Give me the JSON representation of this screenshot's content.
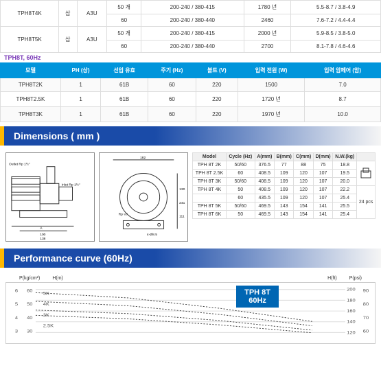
{
  "topSpecs": {
    "rows": [
      {
        "model": "TPH8T4K",
        "ph": "삼",
        "type": "A3U",
        "freq": "50 개",
        "volt": "200-240 / 380-415",
        "rpm": "1780 년",
        "amp": "5.5-8.7 / 3.8-4.9"
      },
      {
        "model": "",
        "ph": "",
        "type": "",
        "freq": "60",
        "volt": "200-240 / 380-440",
        "rpm": "2460",
        "amp": "7.6-7.2 / 4.4-4.4"
      },
      {
        "model": "TPH8T5K",
        "ph": "삼",
        "type": "A3U",
        "freq": "50 개",
        "volt": "200-240 / 380-415",
        "rpm": "2000 년",
        "amp": "5.9-8.5 / 3.8-5.0"
      },
      {
        "model": "",
        "ph": "",
        "type": "",
        "freq": "60",
        "volt": "200-240 / 380-440",
        "rpm": "2700",
        "amp": "8.1-7.8 / 4.6-4.6"
      }
    ]
  },
  "sectionLabel": "TPH8T, 60Hz",
  "specHeaders": [
    "모델",
    "PH (상)",
    "선입 유효",
    "주기 (Hz)",
    "볼트 (V)",
    "입력 전원 (W)",
    "입력 암페어 (암)"
  ],
  "specRows": [
    {
      "model": "TPH8T2K",
      "ph": "1",
      "sel": "61B",
      "hz": "60",
      "v": "220",
      "w": "1500",
      "a": "7.0"
    },
    {
      "model": "TPH8T2.5K",
      "ph": "1",
      "sel": "61B",
      "hz": "60",
      "v": "220",
      "w": "1720 년",
      "a": "8.7"
    },
    {
      "model": "TPH8T3K",
      "ph": "1",
      "sel": "61B",
      "hz": "60",
      "v": "220",
      "w": "1970 년",
      "a": "10.0"
    }
  ],
  "dimTitle": "Dimensions ( mm )",
  "diagramLabels": {
    "outlet": "Outlet Rp 1½″",
    "inlet": "Inlet Rp 1½″",
    "rp": "Rp ¼″",
    "holes": "4-Ø8.5"
  },
  "dimHeaders": [
    "Model",
    "Cycle (Hz)",
    "A(mm)",
    "B(mm)",
    "C(mm)",
    "D(mm)",
    "N.W.(kg)",
    ""
  ],
  "dimRows": [
    {
      "m": "TPH 8T 2K",
      "c": "50/60",
      "a": "376.5",
      "b": "77",
      "cc": "88",
      "d": "75",
      "w": "18.8",
      "p": ""
    },
    {
      "m": "TPH 8T 2.5K",
      "c": "60",
      "a": "408.5",
      "b": "109",
      "cc": "120",
      "d": "107",
      "w": "19.5",
      "p": ""
    },
    {
      "m": "TPH 8T 3K",
      "c": "50/60",
      "a": "408.5",
      "b": "109",
      "cc": "120",
      "d": "107",
      "w": "20.0",
      "p": ""
    },
    {
      "m": "TPH 8T 4K",
      "c": "50",
      "a": "408.5",
      "b": "109",
      "cc": "120",
      "d": "107",
      "w": "22.2",
      "p": "24 pcs"
    },
    {
      "m": "",
      "c": "60",
      "a": "435.5",
      "b": "109",
      "cc": "120",
      "d": "107",
      "w": "25.4",
      "p": ""
    },
    {
      "m": "TPH 8T 5K",
      "c": "50/60",
      "a": "469.5",
      "b": "143",
      "cc": "154",
      "d": "141",
      "w": "25.5",
      "p": ""
    },
    {
      "m": "TPH 8T 6K",
      "c": "50",
      "a": "469.5",
      "b": "143",
      "cc": "154",
      "d": "141",
      "w": "25.4",
      "p": ""
    }
  ],
  "perfTitle": "Performance curve (60Hz)",
  "chartBadge": {
    "l1": "TPH 8T",
    "l2": "60Hz"
  },
  "axisLabels": {
    "yl1": "P(kg/cm²)",
    "yl2": "H(m)",
    "yr1": "H(ft)",
    "yr2": "P(psi)"
  },
  "yLeftTicks": [
    "6",
    "5",
    "4",
    "3"
  ],
  "yMidTicks": [
    "60",
    "50",
    "40",
    "30"
  ],
  "yRightTicks": [
    "200",
    "180",
    "160",
    "140",
    "120"
  ],
  "yRight2Ticks": [
    "90",
    "80",
    "70",
    "60"
  ],
  "curves": [
    "5K",
    "4K",
    "3K",
    "2.5K"
  ],
  "curveData": {
    "type": "line",
    "series": [
      {
        "label": "5K",
        "color": "#444",
        "points": [
          [
            0,
            58
          ],
          [
            50,
            52
          ],
          [
            100,
            40
          ],
          [
            150,
            25
          ]
        ]
      },
      {
        "label": "4K",
        "color": "#444",
        "points": [
          [
            0,
            48
          ],
          [
            50,
            43
          ],
          [
            100,
            33
          ],
          [
            150,
            20
          ]
        ]
      },
      {
        "label": "3K",
        "color": "#444",
        "points": [
          [
            0,
            38
          ],
          [
            50,
            34
          ],
          [
            100,
            26
          ],
          [
            150,
            15
          ]
        ]
      },
      {
        "label": "2.5K",
        "color": "#444",
        "points": [
          [
            0,
            32
          ],
          [
            50,
            28
          ],
          [
            100,
            21
          ],
          [
            150,
            12
          ]
        ]
      }
    ],
    "chart_bg": "#ffffff",
    "grid_color": "#dcdcdc"
  }
}
